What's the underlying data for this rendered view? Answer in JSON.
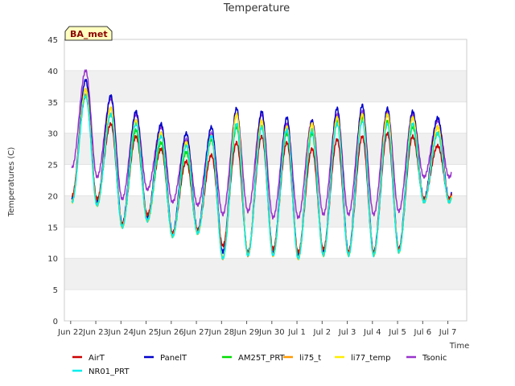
{
  "chart_data": {
    "type": "line",
    "title": "Temperature",
    "xlabel": "Time",
    "ylabel": "Temperatures (C)",
    "badge": "BA_met",
    "ylim": [
      0,
      45
    ],
    "yticks": [
      0,
      5,
      10,
      15,
      20,
      25,
      30,
      35,
      40,
      45
    ],
    "xlim": [
      0,
      16
    ],
    "xticks": [
      {
        "pos": 0,
        "label": "Jun 22"
      },
      {
        "pos": 1,
        "label": "Jun 23"
      },
      {
        "pos": 2,
        "label": "Jun 24"
      },
      {
        "pos": 3,
        "label": "Jun 25"
      },
      {
        "pos": 4,
        "label": "Jun 26"
      },
      {
        "pos": 5,
        "label": "Jun 27"
      },
      {
        "pos": 6,
        "label": "Jun 28"
      },
      {
        "pos": 7,
        "label": "Jun 29"
      },
      {
        "pos": 8,
        "label": "Jun 30"
      },
      {
        "pos": 9,
        "label": "Jul 1"
      },
      {
        "pos": 10,
        "label": "Jul 2"
      },
      {
        "pos": 11,
        "label": "Jul 3"
      },
      {
        "pos": 12,
        "label": "Jul 4"
      },
      {
        "pos": 13,
        "label": "Jul 5"
      },
      {
        "pos": 14,
        "label": "Jul 6"
      },
      {
        "pos": 15,
        "label": "Jul 7"
      }
    ],
    "grid_bands": true,
    "days": [
      "Jun 22",
      "Jun 23",
      "Jun 24",
      "Jun 25",
      "Jun 26",
      "Jun 27",
      "Jun 28",
      "Jun 29",
      "Jun 30",
      "Jul 1",
      "Jul 2",
      "Jul 3",
      "Jul 4",
      "Jul 5",
      "Jul 6"
    ],
    "series": [
      {
        "name": "AirT",
        "color": "#cc0000",
        "max": [
          36,
          31.5,
          29.5,
          27.5,
          25.5,
          26.5,
          28.5,
          29.5,
          28.5,
          27.5,
          29,
          29.5,
          30,
          29.5,
          28
        ],
        "min": [
          20,
          19.5,
          15.5,
          17,
          14,
          14.5,
          12,
          11,
          11.5,
          11,
          11.5,
          11,
          11,
          11.5,
          19.5
        ]
      },
      {
        "name": "PanelT",
        "color": "#0000cc",
        "max": [
          38.5,
          36,
          33.5,
          31.5,
          30,
          31,
          34,
          33.5,
          32.5,
          32,
          34,
          34.5,
          34,
          33.5,
          32.5
        ],
        "min": [
          19.5,
          19,
          15.5,
          16.5,
          14,
          14.5,
          11,
          10.5,
          11,
          10.5,
          11,
          11,
          11,
          11.5,
          19.5
        ]
      },
      {
        "name": "AM25T_PRT",
        "color": "#00dd00",
        "max": [
          37,
          33,
          30.5,
          28.5,
          27,
          29,
          31,
          31,
          30,
          30,
          32,
          32.5,
          32,
          31,
          30
        ]
      },
      {
        "name": "li75_t",
        "color": "#ff9900",
        "max": [
          37,
          34,
          32,
          30,
          28.5,
          29.5,
          33,
          32,
          31,
          31.5,
          32.5,
          33,
          33,
          32.5,
          31
        ]
      },
      {
        "name": "li77_temp",
        "color": "#ffee00",
        "max": [
          37,
          34,
          32,
          30,
          28.5,
          29.5,
          33,
          32,
          31,
          31.5,
          32.5,
          33,
          33,
          32.5,
          31
        ]
      },
      {
        "name": "Tsonic",
        "color": "#9933cc",
        "max": [
          40,
          35.5,
          33,
          31,
          29,
          30,
          33,
          33,
          31.5,
          32,
          33,
          33.5,
          33.5,
          33,
          32
        ],
        "min": [
          24.5,
          23,
          19.5,
          21,
          19,
          18.5,
          17,
          17.5,
          16.5,
          16.5,
          17,
          17,
          17,
          17.5,
          23
        ]
      },
      {
        "name": "NR01_PRT",
        "color": "#00eeee",
        "max": [
          36,
          33,
          31.5,
          29.5,
          28,
          29.5,
          31.5,
          31,
          30.5,
          30.5,
          31.5,
          32,
          31.5,
          31.5,
          30
        ],
        "min": [
          19,
          18.5,
          15,
          16,
          13.5,
          14,
          10,
          10.5,
          10.5,
          10,
          10.5,
          10.5,
          10.5,
          11,
          19
        ]
      }
    ]
  }
}
